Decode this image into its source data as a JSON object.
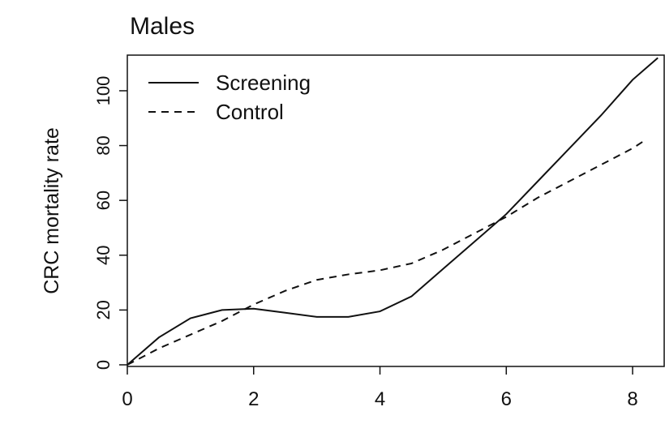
{
  "chart_data": {
    "type": "line",
    "title": "Males",
    "ylabel": "CRC mortality rate",
    "x": [
      0,
      0.5,
      1,
      1.5,
      2,
      2.5,
      3,
      3.5,
      4,
      4.5,
      5,
      5.5,
      6,
      6.5,
      7,
      7.5,
      8,
      8.2,
      8.4
    ],
    "series": [
      {
        "name": "Screening",
        "color": "#111111",
        "dash": "solid",
        "values": [
          0,
          10,
          17,
          20,
          20.5,
          19,
          17.5,
          17.5,
          19.5,
          25,
          35,
          45,
          55,
          67,
          79,
          91,
          104,
          108,
          112
        ]
      },
      {
        "name": "Control",
        "color": "#111111",
        "dash": "dashed",
        "values": [
          0,
          6,
          11,
          16,
          22,
          27,
          31,
          33,
          34.5,
          37,
          42,
          48,
          54,
          61,
          67,
          73,
          79,
          82,
          null
        ]
      }
    ],
    "xlim": [
      0,
      8.5
    ],
    "ylim": [
      0,
      113
    ],
    "xticks": [
      0,
      2,
      4,
      6,
      8
    ],
    "yticks": [
      0,
      20,
      40,
      60,
      80,
      100
    ],
    "legend": "top-left"
  }
}
